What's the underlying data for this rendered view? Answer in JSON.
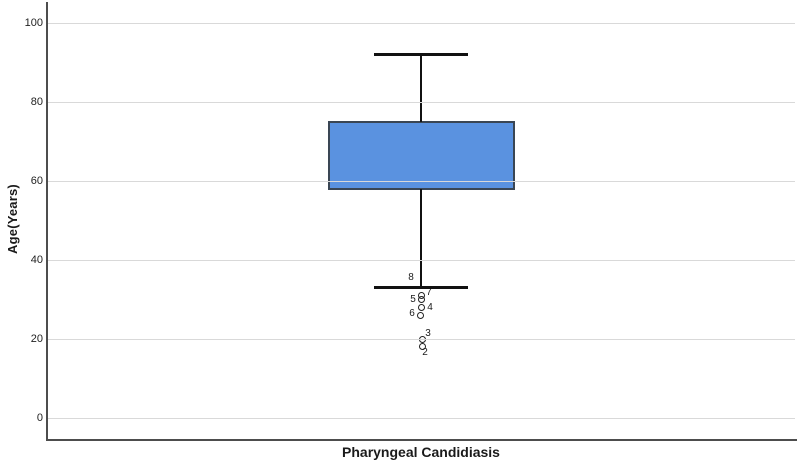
{
  "figure": {
    "background": "#ffffff"
  },
  "chart_data": {
    "type": "boxplot",
    "title": "",
    "xlabel": "Pharyngeal Candidiasis",
    "ylabel": "Age(Years)",
    "categories": [
      "Pharyngeal Candidiasis"
    ],
    "ylim": [
      0,
      100
    ],
    "yticks": [
      0,
      20,
      40,
      60,
      80,
      100
    ],
    "grid": true,
    "legend": false,
    "series": [
      {
        "name": "Pharyngeal Candidiasis",
        "q1": 58,
        "median": 67,
        "q3": 75,
        "whisker_low": 33,
        "whisker_high": 92,
        "outliers": [
          {
            "case": "8",
            "value": 33,
            "marker": "none",
            "dx": 0,
            "label_dx": -10,
            "label_dy": -10
          },
          {
            "case": "7",
            "value": 31,
            "marker": "circle",
            "dx": 0.5,
            "label_dx": 8,
            "label_dy": -3
          },
          {
            "case": "5",
            "value": 30,
            "marker": "circle",
            "dx": 0.5,
            "label_dx": -8,
            "label_dy": 0
          },
          {
            "case": "4",
            "value": 28,
            "marker": "circle",
            "dx": 0.5,
            "label_dx": 9,
            "label_dy": 1
          },
          {
            "case": "6",
            "value": 26,
            "marker": "circle",
            "dx": -0.5,
            "label_dx": -9,
            "label_dy": -1
          },
          {
            "case": "3",
            "value": 20,
            "marker": "circle",
            "dx": 1.5,
            "label_dx": 7,
            "label_dy": -5
          },
          {
            "case": "2",
            "value": 18,
            "marker": "circle",
            "dx": 1.5,
            "label_dx": 4,
            "label_dy": 6
          }
        ]
      }
    ],
    "colors": {
      "box_fill": "#5a92e0",
      "box_border": "#3a4654",
      "median": "#000000",
      "whisker": "#111111",
      "grid": "#d9d9d9",
      "axis": "#4d4d4d",
      "text": "#1a1a1a"
    }
  }
}
